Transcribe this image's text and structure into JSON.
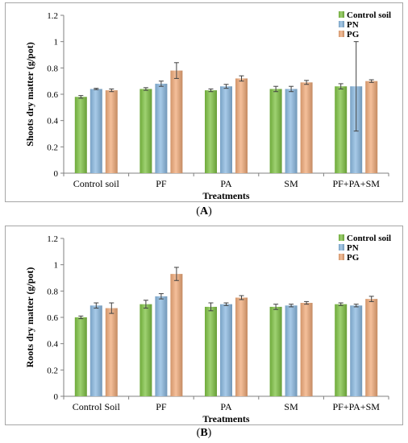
{
  "chart_data": [
    {
      "panel_label_open": "(",
      "panel_label": "A",
      "panel_label_close": ")",
      "type": "bar",
      "categories": [
        "Control soil",
        "PF",
        "PA",
        "SM",
        "PF+PA+SM"
      ],
      "xlabel": "Treatments",
      "ylabel": "Shoots dry matter (g/pot)",
      "ylim": [
        0,
        1.2
      ],
      "yticks": [
        "0",
        "0.2",
        "0.4",
        "0.6",
        "0.8",
        "1",
        "1.2"
      ],
      "grid": false,
      "legend_position": "top-right",
      "series": [
        {
          "name": "Control soil",
          "color": "#7dc142",
          "values": [
            0.58,
            0.64,
            0.63,
            0.64,
            0.66
          ],
          "errors": [
            0.01,
            0.01,
            0.01,
            0.02,
            0.02
          ]
        },
        {
          "name": "PN",
          "color": "#8ab8e0",
          "values": [
            0.64,
            0.68,
            0.66,
            0.64,
            0.66
          ],
          "errors": [
            0.005,
            0.02,
            0.015,
            0.02,
            0.34
          ]
        },
        {
          "name": "PG",
          "color": "#f0a978",
          "values": [
            0.63,
            0.78,
            0.72,
            0.69,
            0.7
          ],
          "errors": [
            0.01,
            0.06,
            0.02,
            0.015,
            0.01
          ]
        }
      ]
    },
    {
      "panel_label_open": "(",
      "panel_label": "B",
      "panel_label_close": ")",
      "type": "bar",
      "categories": [
        "Control Soil",
        "PF",
        "PA",
        "SM",
        "PF+PA+SM"
      ],
      "xlabel": "Treatments",
      "ylabel": "Roots dry matter (g/pot)",
      "ylim": [
        0,
        1.2
      ],
      "yticks": [
        "0",
        "0.2",
        "0.4",
        "0.6",
        "0.8",
        "1",
        "1.2"
      ],
      "grid": false,
      "legend_position": "top-right",
      "series": [
        {
          "name": "Control soil",
          "color": "#7dc142",
          "values": [
            0.6,
            0.7,
            0.68,
            0.68,
            0.7
          ],
          "errors": [
            0.01,
            0.03,
            0.03,
            0.02,
            0.01
          ]
        },
        {
          "name": "PN",
          "color": "#8ab8e0",
          "values": [
            0.69,
            0.76,
            0.7,
            0.69,
            0.69
          ],
          "errors": [
            0.02,
            0.02,
            0.01,
            0.01,
            0.01
          ]
        },
        {
          "name": "PG",
          "color": "#f0a978",
          "values": [
            0.67,
            0.93,
            0.75,
            0.71,
            0.74
          ],
          "errors": [
            0.04,
            0.05,
            0.015,
            0.01,
            0.02
          ]
        }
      ]
    }
  ]
}
